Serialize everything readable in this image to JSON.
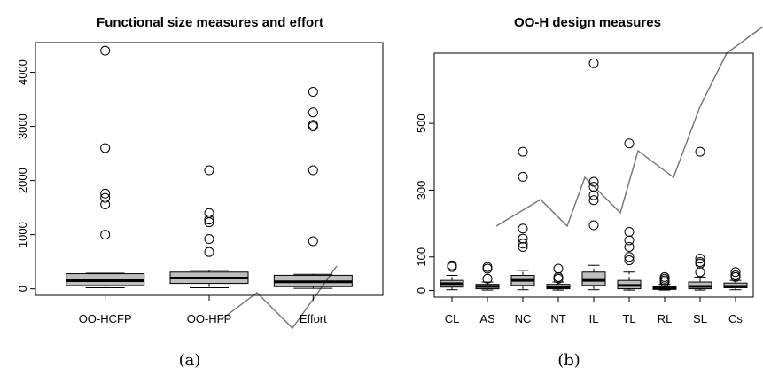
{
  "chart_data": [
    {
      "type": "box",
      "title": "Functional size measures and effort",
      "caption": "(a)",
      "categories": [
        "OO-HCFP",
        "OO-HFP",
        "Effort"
      ],
      "y_ticks": [
        0,
        1000,
        2000,
        3000,
        4000
      ],
      "ylim": [
        -120,
        4550
      ],
      "boxes": [
        {
          "q1": 60,
          "median": 150,
          "q3": 280,
          "whisker_low": 20,
          "whisker_high": 290,
          "outliers": [
            1000,
            1560,
            1680,
            1760,
            2600,
            4400
          ]
        },
        {
          "q1": 100,
          "median": 200,
          "q3": 310,
          "whisker_low": 20,
          "whisker_high": 340,
          "outliers": [
            680,
            920,
            1230,
            1280,
            1400,
            2190
          ]
        },
        {
          "q1": 40,
          "median": 130,
          "q3": 250,
          "whisker_low": 10,
          "whisker_high": 270,
          "outliers": [
            880,
            2190,
            3000,
            3030,
            3260,
            3640
          ]
        }
      ]
    },
    {
      "type": "box",
      "title": "OO-H design measures",
      "caption": "(b)",
      "categories": [
        "CL",
        "AS",
        "NC",
        "NT",
        "IL",
        "TL",
        "RL",
        "SL",
        "Cs"
      ],
      "y_ticks": [
        0,
        100,
        300,
        500
      ],
      "ylim": [
        -20,
        710
      ],
      "boxes": [
        {
          "q1": 10,
          "median": 20,
          "q3": 30,
          "whisker_low": 2,
          "whisker_high": 45,
          "outliers": [
            70,
            75
          ]
        },
        {
          "q1": 5,
          "median": 12,
          "q3": 18,
          "whisker_low": 1,
          "whisker_high": 25,
          "outliers": [
            35,
            65,
            70
          ]
        },
        {
          "q1": 15,
          "median": 30,
          "q3": 45,
          "whisker_low": 2,
          "whisker_high": 60,
          "outliers": [
            130,
            140,
            155,
            185,
            340,
            415
          ]
        },
        {
          "q1": 5,
          "median": 10,
          "q3": 18,
          "whisker_low": 1,
          "whisker_high": 25,
          "outliers": [
            35,
            40,
            65
          ]
        },
        {
          "q1": 15,
          "median": 30,
          "q3": 55,
          "whisker_low": 2,
          "whisker_high": 75,
          "outliers": [
            195,
            270,
            285,
            310,
            325,
            680
          ]
        },
        {
          "q1": 5,
          "median": 15,
          "q3": 30,
          "whisker_low": 1,
          "whisker_high": 55,
          "outliers": [
            90,
            100,
            130,
            150,
            175,
            440
          ]
        },
        {
          "q1": 3,
          "median": 8,
          "q3": 12,
          "whisker_low": 1,
          "whisker_high": 18,
          "outliers": [
            25,
            30,
            35,
            40
          ]
        },
        {
          "q1": 5,
          "median": 12,
          "q3": 25,
          "whisker_low": 1,
          "whisker_high": 40,
          "outliers": [
            55,
            80,
            85,
            95,
            415
          ]
        },
        {
          "q1": 8,
          "median": 12,
          "q3": 22,
          "whisker_low": 2,
          "whisker_high": 30,
          "outliers": [
            40,
            45,
            55
          ]
        }
      ]
    }
  ]
}
